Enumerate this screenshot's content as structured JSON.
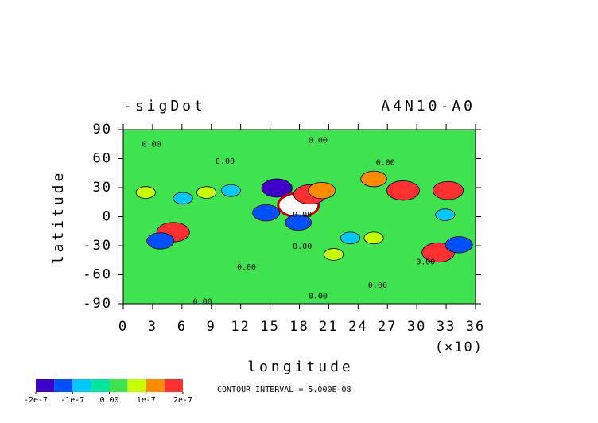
{
  "chart_data": {
    "type": "contour",
    "title_left": "-sigDot",
    "title_right": "A4N10-A0",
    "xlabel": "longitude",
    "xscale_note": "(×10)",
    "ylabel": "latitude",
    "footnote": "CONTOUR INTERVAL = 5.000E-08",
    "xlim": [
      0,
      36
    ],
    "ylim": [
      -90,
      90
    ],
    "xticks": [
      0,
      3,
      6,
      9,
      12,
      15,
      18,
      21,
      24,
      27,
      30,
      33,
      36
    ],
    "yticks": [
      -90,
      -60,
      -30,
      0,
      30,
      60,
      90
    ],
    "base_color": "#3ee34f",
    "over_color": "#ffffff",
    "levels": [
      -2e-07,
      -1.5e-07,
      -1e-07,
      -5e-08,
      0,
      5e-08,
      1e-07,
      1.5e-07,
      2e-07
    ],
    "colors": [
      "#3c00c8",
      "#0050ff",
      "#00c8ff",
      "#00e6a0",
      "#3ee34f",
      "#c8ff00",
      "#ff8c00",
      "#ff3030"
    ],
    "colorbar_ticks": [
      {
        "value": -2e-07,
        "label": "-2e-7"
      },
      {
        "value": -1e-07,
        "label": "-1e-7"
      },
      {
        "value": 0,
        "label": "0.00"
      },
      {
        "value": 1e-07,
        "label": "1e-7"
      },
      {
        "value": 2e-07,
        "label": "2e-7"
      }
    ],
    "x": [
      15.7,
      17.9,
      19.1,
      20.3,
      14.6,
      17.9,
      5.1,
      3.8,
      28.6,
      33.2,
      32.2,
      34.3,
      8.5,
      2.3,
      11,
      23.2,
      25.6,
      25.6,
      32.9,
      21.5,
      6.1
    ],
    "y": [
      29.6,
      12,
      23,
      27,
      4,
      -6,
      -16,
      -25,
      27,
      27,
      -37,
      -29,
      25,
      25,
      27,
      -22,
      -22,
      39,
      2,
      -39,
      19
    ],
    "values": [
      -1.6e-07,
      2.5e-07,
      1.8e-07,
      1.3e-07,
      -1.3e-07,
      -1.2e-07,
      1.8e-07,
      -1.3e-07,
      1.8e-07,
      1.6e-07,
      1.8e-07,
      -1.3e-07,
      6e-08,
      6e-08,
      -6e-08,
      -6e-08,
      6e-08,
      1.2e-07,
      -6e-08,
      6e-08,
      -6e-08
    ],
    "contour_labels": [
      {
        "text": "0.00",
        "x": 2.9,
        "y": 75
      },
      {
        "text": "0.00",
        "x": 19.9,
        "y": 79
      },
      {
        "text": "0.00",
        "x": 10.4,
        "y": 57
      },
      {
        "text": "0.00",
        "x": 26.8,
        "y": 56
      },
      {
        "text": "0.00",
        "x": 18.3,
        "y": -31
      },
      {
        "text": "0.00",
        "x": 12.6,
        "y": -52
      },
      {
        "text": "0.00",
        "x": 30.9,
        "y": -47
      },
      {
        "text": "0.00",
        "x": 26,
        "y": -71
      },
      {
        "text": "0.00",
        "x": 19.9,
        "y": -82
      },
      {
        "text": "0.00",
        "x": 8.1,
        "y": -88
      },
      {
        "text": "0.00",
        "x": 18.3,
        "y": 2
      }
    ]
  }
}
